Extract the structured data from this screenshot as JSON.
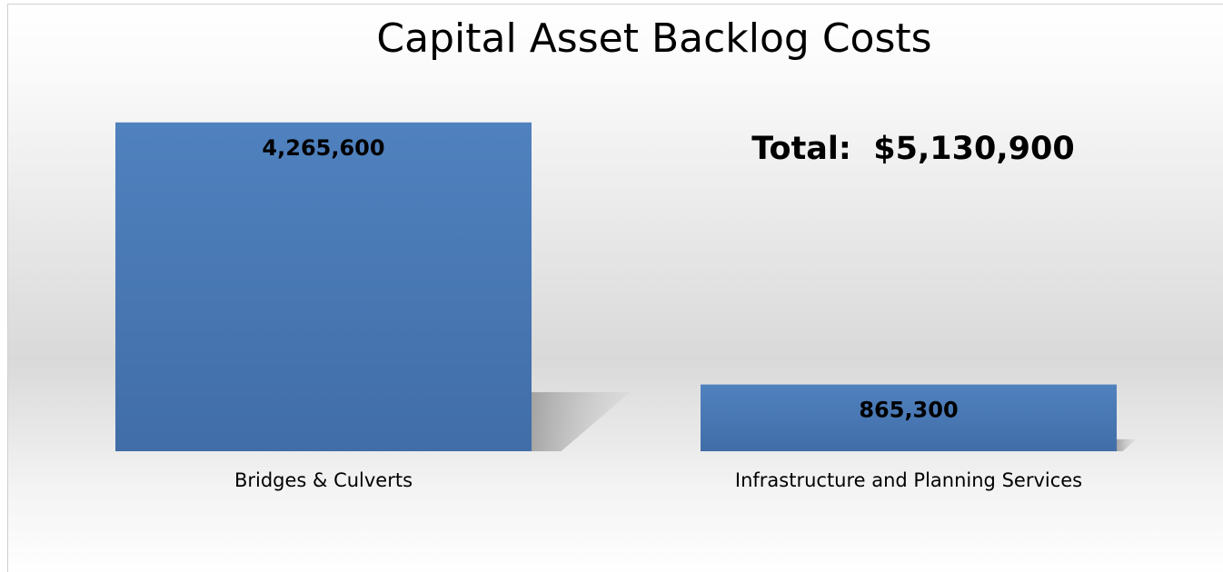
{
  "chart_data": {
    "type": "bar",
    "title": "Capital Asset Backlog Costs",
    "annotation": "Total:  $5,130,900",
    "categories": [
      "Bridges & Culverts",
      "Infrastructure and Planning Services"
    ],
    "values": [
      4265600,
      865300
    ],
    "value_labels": [
      "4,265,600",
      "865,300"
    ],
    "color": "#4a7ab8",
    "ylim": [
      0,
      4500000
    ]
  }
}
